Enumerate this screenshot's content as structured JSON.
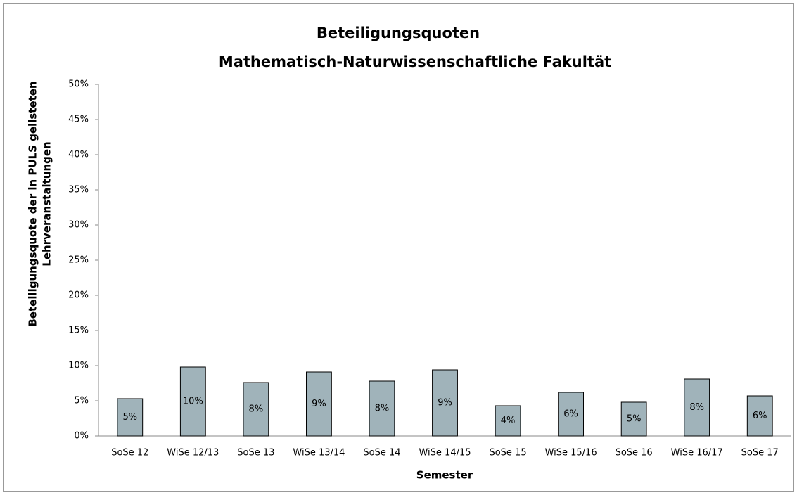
{
  "chart_data": {
    "type": "bar",
    "title": [
      "Beteiligungsquoten",
      "Mathematisch-Naturwissenschaftliche Fakultät"
    ],
    "x_label": "Semester",
    "y_label": [
      "Beteiligungsquote der in PULS gelisteten",
      "Lehrveranstaltungen"
    ],
    "categories": [
      "SoSe 12",
      "WiSe 12/13",
      "SoSe 13",
      "WiSe 13/14",
      "SoSe 14",
      "WiSe 14/15",
      "SoSe 15",
      "WiSe 15/16",
      "SoSe 16",
      "WiSe 16/17",
      "SoSe 17"
    ],
    "values": [
      5.3,
      9.8,
      7.6,
      9.1,
      7.8,
      9.4,
      4.3,
      6.2,
      4.8,
      8.1,
      5.7
    ],
    "value_labels": [
      "5%",
      "10%",
      "8%",
      "9%",
      "8%",
      "9%",
      "4%",
      "6%",
      "5%",
      "8%",
      "6%"
    ],
    "color": "#a0b3ba",
    "ylim": [
      0,
      50
    ],
    "yticks": [
      {
        "value": 0,
        "label": "0%"
      },
      {
        "value": 5,
        "label": "5%"
      },
      {
        "value": 10,
        "label": "10%"
      },
      {
        "value": 15,
        "label": "15%"
      },
      {
        "value": 20,
        "label": "20%"
      },
      {
        "value": 25,
        "label": "25%"
      },
      {
        "value": 30,
        "label": "30%"
      },
      {
        "value": 35,
        "label": "35%"
      },
      {
        "value": 40,
        "label": "40%"
      },
      {
        "value": 45,
        "label": "45%"
      },
      {
        "value": 50,
        "label": "50%"
      }
    ],
    "grid": false
  }
}
